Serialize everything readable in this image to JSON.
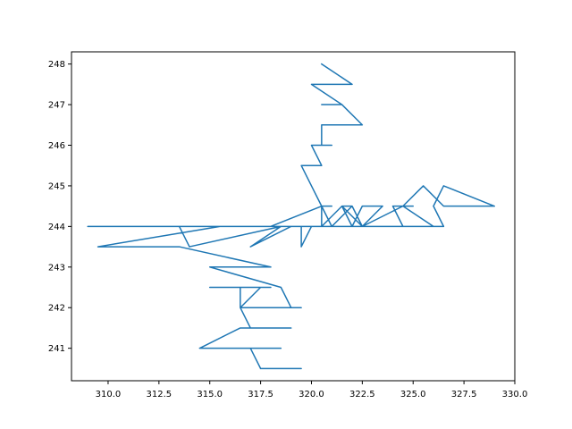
{
  "colors": {
    "series": "#1f77b4",
    "axes": "#000000",
    "background": "#ffffff"
  },
  "chart_data": {
    "type": "line",
    "grid": false,
    "legend": "none",
    "xlim": [
      308.2,
      330.0
    ],
    "ylim": [
      240.2,
      248.3
    ],
    "xticks": [
      310.0,
      312.5,
      315.0,
      317.5,
      320.0,
      322.5,
      325.0,
      327.5,
      330.0
    ],
    "xtick_labels": [
      "310.0",
      "312.5",
      "315.0",
      "317.5",
      "320.0",
      "322.5",
      "325.0",
      "327.5",
      "330.0"
    ],
    "yticks": [
      241,
      242,
      243,
      244,
      245,
      246,
      247,
      248
    ],
    "ytick_labels": [
      "241",
      "242",
      "243",
      "244",
      "245",
      "246",
      "247",
      "248"
    ],
    "series": [
      {
        "x": [
          320.5,
          322.0,
          320.0,
          321.5,
          320.5,
          321.5,
          322.5,
          321.0,
          321.5,
          320.5,
          320.5,
          321.0,
          320.5,
          320.0,
          320.5,
          319.5,
          320.0,
          320.0,
          320.5,
          321.0,
          320.5,
          321.0,
          322.0,
          322.5,
          321.5,
          322.0,
          321.0,
          320.5,
          320.5,
          318.0,
          309.0,
          326.5,
          324.5,
          324.0,
          325.0,
          324.5,
          325.5,
          326.5,
          329.0,
          326.5,
          326.0,
          326.5,
          326.0,
          324.5,
          322.5,
          323.5,
          322.5,
          322.0,
          321.5,
          320.5,
          320.0,
          319.5,
          319.5,
          320.0,
          318.5,
          317.0,
          319.0,
          317.0,
          318.5,
          314.0,
          313.5,
          315.5,
          309.5,
          311.0,
          313.5,
          318.0,
          316.0,
          317.5,
          316.5,
          315.0,
          318.5,
          319.0,
          319.5,
          318.5,
          316.5,
          316.5,
          318.0,
          315.0,
          317.0,
          316.0,
          317.5,
          316.5,
          317.0,
          318.5,
          319.0,
          316.5,
          314.5,
          317.0,
          318.5,
          318.0,
          317.0,
          317.5,
          319.5,
          318.5,
          318.0,
          319.0,
          318.0,
          317.5,
          319.0,
          318.5,
          319.0,
          317.5
        ],
        "y": [
          248.0,
          247.5,
          247.5,
          247.0,
          247.0,
          247.0,
          246.5,
          246.5,
          246.5,
          246.5,
          246.0,
          246.0,
          246.0,
          246.0,
          245.5,
          245.5,
          245.0,
          245.0,
          244.5,
          244.5,
          244.5,
          244.0,
          244.5,
          244.0,
          244.5,
          244.5,
          244.0,
          244.0,
          244.5,
          244.0,
          244.0,
          244.0,
          244.0,
          244.5,
          244.5,
          244.5,
          245.0,
          244.5,
          244.5,
          245.0,
          244.5,
          244.0,
          244.0,
          244.5,
          244.0,
          244.5,
          244.5,
          244.0,
          244.5,
          244.0,
          244.0,
          244.0,
          243.5,
          244.0,
          244.0,
          243.5,
          244.0,
          244.0,
          244.0,
          243.5,
          244.0,
          244.0,
          243.5,
          243.5,
          243.5,
          243.0,
          243.0,
          243.0,
          243.0,
          243.0,
          242.5,
          242.0,
          242.0,
          242.0,
          242.0,
          242.5,
          242.5,
          242.5,
          242.5,
          242.5,
          242.5,
          242.0,
          241.5,
          241.5,
          241.5,
          241.5,
          241.0,
          241.0,
          241.0,
          241.0,
          241.0,
          240.5,
          240.5,
          240.5,
          240.5,
          240.5,
          240.5,
          240.5,
          240.5,
          240.5,
          240.5,
          240.5
        ]
      }
    ]
  }
}
